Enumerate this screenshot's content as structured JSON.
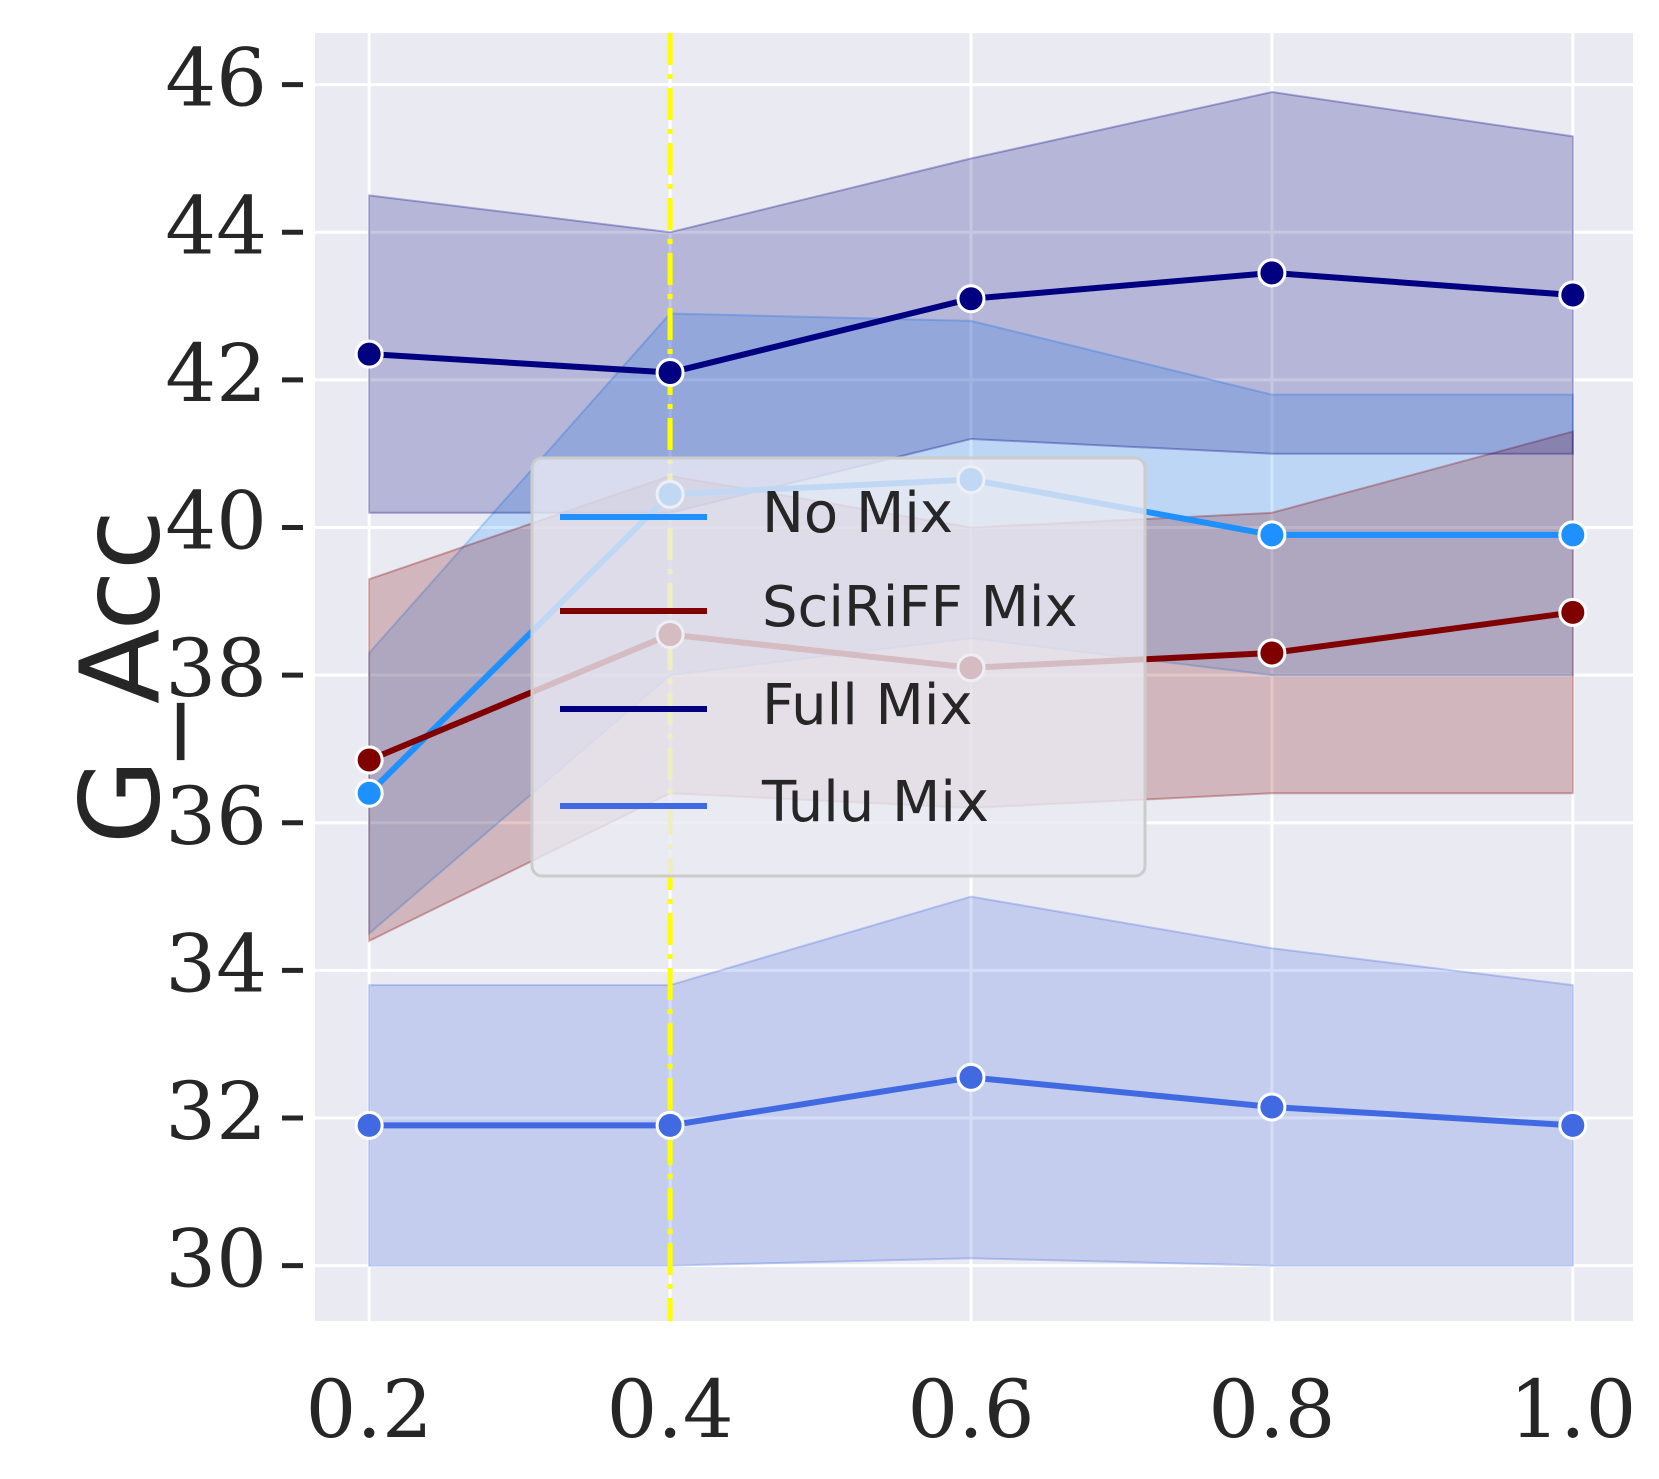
{
  "chart_data": {
    "type": "line",
    "title": "",
    "xlabel": "",
    "ylabel": "G_Acc",
    "x": [
      0.2,
      0.4,
      0.6,
      0.8,
      1.0
    ],
    "x_tick_labels": [
      "0.2",
      "0.4",
      "0.6",
      "0.8",
      "1.0"
    ],
    "xlim": [
      0.164,
      1.04
    ],
    "ylim": [
      29.25,
      46.7
    ],
    "y_ticks": [
      30,
      32,
      34,
      36,
      38,
      40,
      42,
      44,
      46
    ],
    "y_tick_labels": [
      "30",
      "32",
      "34",
      "36",
      "38",
      "40",
      "42",
      "44",
      "46"
    ],
    "grid": true,
    "background_color": "#eaeaf2",
    "legend": {
      "location": "center",
      "entries": [
        "No Mix",
        "SciRiFF Mix",
        "Full Mix",
        "Tulu Mix"
      ]
    },
    "vertical_line": {
      "x": 0.4,
      "color": "#ffff00",
      "style": "dash-dot"
    },
    "series": [
      {
        "name": "No Mix",
        "color": "#1e90ff",
        "values": [
          36.4,
          40.45,
          40.65,
          39.9,
          39.9
        ],
        "band_lower": [
          34.5,
          38.0,
          38.5,
          38.0,
          38.0
        ],
        "band_upper": [
          38.3,
          42.9,
          42.8,
          41.8,
          41.8
        ]
      },
      {
        "name": "SciRiFF Mix",
        "color": "#800000",
        "values": [
          36.85,
          38.55,
          38.1,
          38.3,
          38.85
        ],
        "band_lower": [
          34.4,
          36.4,
          36.2,
          36.4,
          36.4
        ],
        "band_upper": [
          39.3,
          40.7,
          40.0,
          40.2,
          41.3
        ]
      },
      {
        "name": "Full Mix",
        "color": "#000080",
        "values": [
          42.35,
          42.1,
          43.1,
          43.45,
          43.15
        ],
        "band_lower": [
          40.2,
          40.2,
          41.2,
          41.0,
          41.0
        ],
        "band_upper": [
          44.5,
          44.0,
          45.0,
          45.9,
          45.3
        ]
      },
      {
        "name": "Tulu Mix",
        "color": "#4169e1",
        "values": [
          31.9,
          31.9,
          32.55,
          32.15,
          31.9
        ],
        "band_lower": [
          30.0,
          30.0,
          30.1,
          30.0,
          30.0
        ],
        "band_upper": [
          33.8,
          33.8,
          35.0,
          34.3,
          33.8
        ]
      }
    ]
  }
}
